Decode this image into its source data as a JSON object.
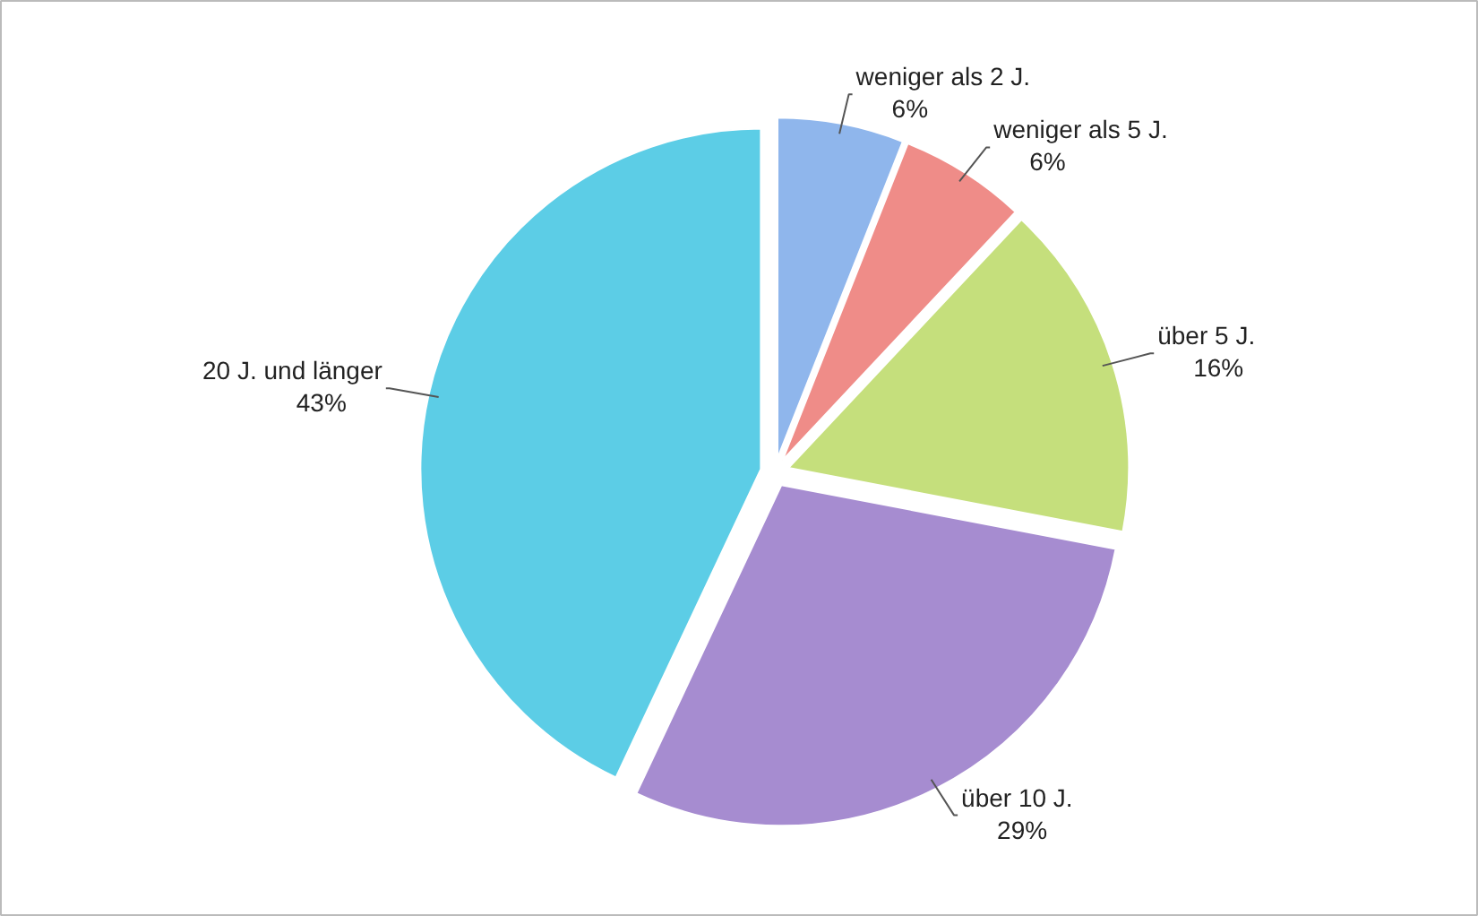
{
  "chart_data": {
    "type": "pie",
    "categories": [
      "weniger als 2 J.",
      "weniger als 5 J.",
      "über 5 J.",
      "über 10 J.",
      "20 J. und länger"
    ],
    "values": [
      6,
      6,
      16,
      29,
      43
    ],
    "value_labels": [
      "6%",
      "6%",
      "16%",
      "29%",
      "43%"
    ],
    "colors": [
      "#8fb6ec",
      "#ef8c88",
      "#c5df7c",
      "#a68cd0",
      "#5ccde6"
    ]
  }
}
